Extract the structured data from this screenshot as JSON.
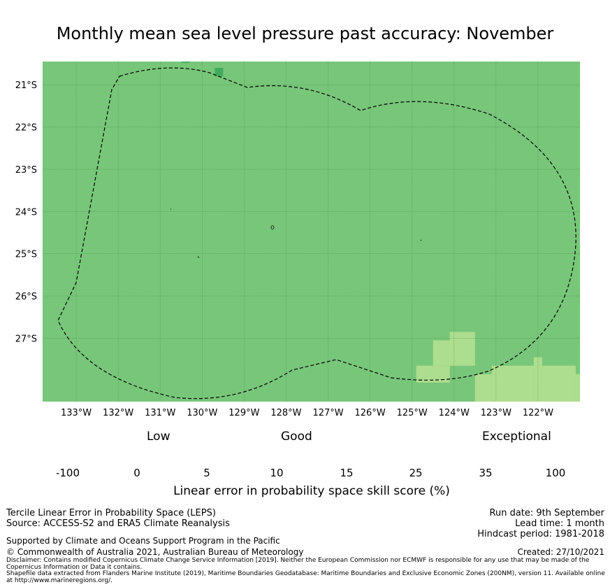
{
  "title": "Monthly mean sea level pressure past accuracy: November",
  "map": {
    "lon_labels": [
      "133°W",
      "132°W",
      "131°W",
      "130°W",
      "129°W",
      "128°W",
      "127°W",
      "126°W",
      "125°W",
      "124°W",
      "123°W",
      "122°W"
    ],
    "lat_labels": [
      "21°S",
      "22°S",
      "23°S",
      "24°S",
      "25°S",
      "26°S",
      "27°S"
    ],
    "lon_range": [
      -133.8,
      -121.0
    ],
    "lat_range": [
      -28.5,
      -20.45
    ],
    "background_category": "15-25",
    "eez_boundary": "dashed",
    "colors": {
      "15-25": "#78c679",
      "10-15": "#addd8e",
      "25-35": "#41ab5d"
    }
  },
  "colorbar": {
    "category_labels": {
      "low": "Low",
      "good": "Good",
      "exceptional": "Exceptional"
    },
    "ticks": [
      "-100",
      "0",
      "5",
      "10",
      "15",
      "25",
      "35",
      "100"
    ],
    "colors": [
      "#ffffff",
      "#ffffcc",
      "#d9f0a3",
      "#addd8e",
      "#78c679",
      "#41ab5d",
      "#238443"
    ],
    "axis_label": "Linear error in probability space skill score (%)"
  },
  "footer": {
    "left": [
      "Tercile Linear Error in Probability Space (LEPS)",
      "Source: ACCESS-S2 and ERA5 Climate Reanalysis"
    ],
    "support": "Supported by Climate and Oceans Support Program in the Pacific",
    "copyright": "© Commonwealth of Australia 2021, Australian Bureau of Meteorology",
    "right": [
      "Run date: 9th September",
      "Lead time: 1 month",
      "Hindcast period: 1981-2018"
    ],
    "created": "Created: 27/10/2021",
    "disclaimer": "Disclaimer: Contains modified Copernicus Climate Change Service Information [2019]. Neither the European Commission nor ECMWF is responsible for any use that may be made of the Copernicus Information or Data it contains.",
    "shapefile": "Shapefile data extracted from Flanders Marine Institute (2019), Maritime Boundaries Geodatabase: Maritime Boundaries and Exclusive Economic Zones (200NM), version 11. Available online at http://www.marineregions.org/."
  }
}
